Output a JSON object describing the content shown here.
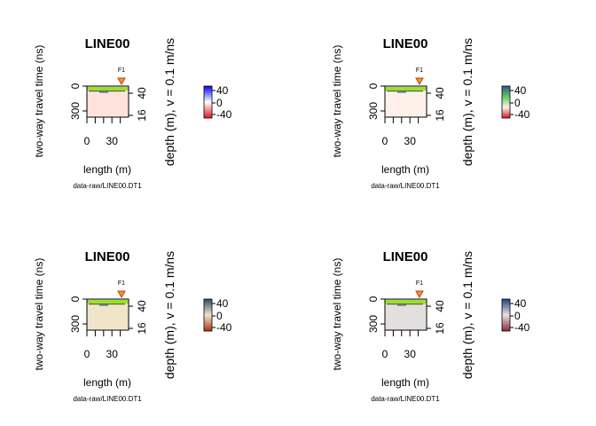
{
  "chart_data": [
    {
      "type": "heatmap",
      "title": "LINE00",
      "xlabel": "length (m)",
      "ylabel": "two-way travel time (ns)",
      "ylabel_right": "depth (m),   v = 0.1 m/ns",
      "x_ticks": [
        "0",
        "30"
      ],
      "y_ticks": [
        "0",
        "300"
      ],
      "depth_ticks": [
        "40",
        "16"
      ],
      "colorbar_ticks": [
        "40",
        "0",
        "-40"
      ],
      "colorbar_range": [
        -40,
        40
      ],
      "colorbar_colors": [
        "#d7191c",
        "#ffffff",
        "#0000ff"
      ],
      "fill_color": "#fde3dc",
      "marker_label": "F1",
      "footer": "data-raw/LINE00.DT1"
    },
    {
      "type": "heatmap",
      "title": "LINE00",
      "xlabel": "length (m)",
      "ylabel": "two-way travel time (ns)",
      "ylabel_right": "depth (m),   v = 0.1 m/ns",
      "x_ticks": [
        "0",
        "30"
      ],
      "y_ticks": [
        "0",
        "300"
      ],
      "depth_ticks": [
        "40",
        "16"
      ],
      "colorbar_ticks": [
        "40",
        "0",
        "-40"
      ],
      "colorbar_range": [
        -40,
        40
      ],
      "colorbar_colors": [
        "#d7191c",
        "#fdf3e7",
        "#5ec962",
        "#3b528b"
      ],
      "fill_color": "#fdf1ea",
      "marker_label": "F1",
      "footer": "data-raw/LINE00.DT1"
    },
    {
      "type": "heatmap",
      "title": "LINE00",
      "xlabel": "length (m)",
      "ylabel": "two-way travel time (ns)",
      "ylabel_right": "depth (m),   v = 0.1 m/ns",
      "x_ticks": [
        "0",
        "30"
      ],
      "y_ticks": [
        "0",
        "300"
      ],
      "depth_ticks": [
        "40",
        "16"
      ],
      "colorbar_ticks": [
        "40",
        "0",
        "-40"
      ],
      "colorbar_range": [
        -40,
        40
      ],
      "colorbar_colors": [
        "#a6361a",
        "#f0e6c8",
        "#2c4a6b"
      ],
      "fill_color": "#efe6c9",
      "marker_label": "F1",
      "footer": "data-raw/LINE00.DT1"
    },
    {
      "type": "heatmap",
      "title": "LINE00",
      "xlabel": "length (m)",
      "ylabel": "two-way travel time (ns)",
      "ylabel_right": "depth (m),   v = 0.1 m/ns",
      "x_ticks": [
        "0",
        "30"
      ],
      "y_ticks": [
        "0",
        "300"
      ],
      "depth_ticks": [
        "40",
        "16"
      ],
      "colorbar_ticks": [
        "40",
        "0",
        "-40"
      ],
      "colorbar_range": [
        -40,
        40
      ],
      "colorbar_colors": [
        "#8b2a3a",
        "#e6e0e0",
        "#1f3f8a"
      ],
      "fill_color": "#e3dfdf",
      "marker_label": "F1",
      "footer": "data-raw/LINE00.DT1"
    }
  ]
}
